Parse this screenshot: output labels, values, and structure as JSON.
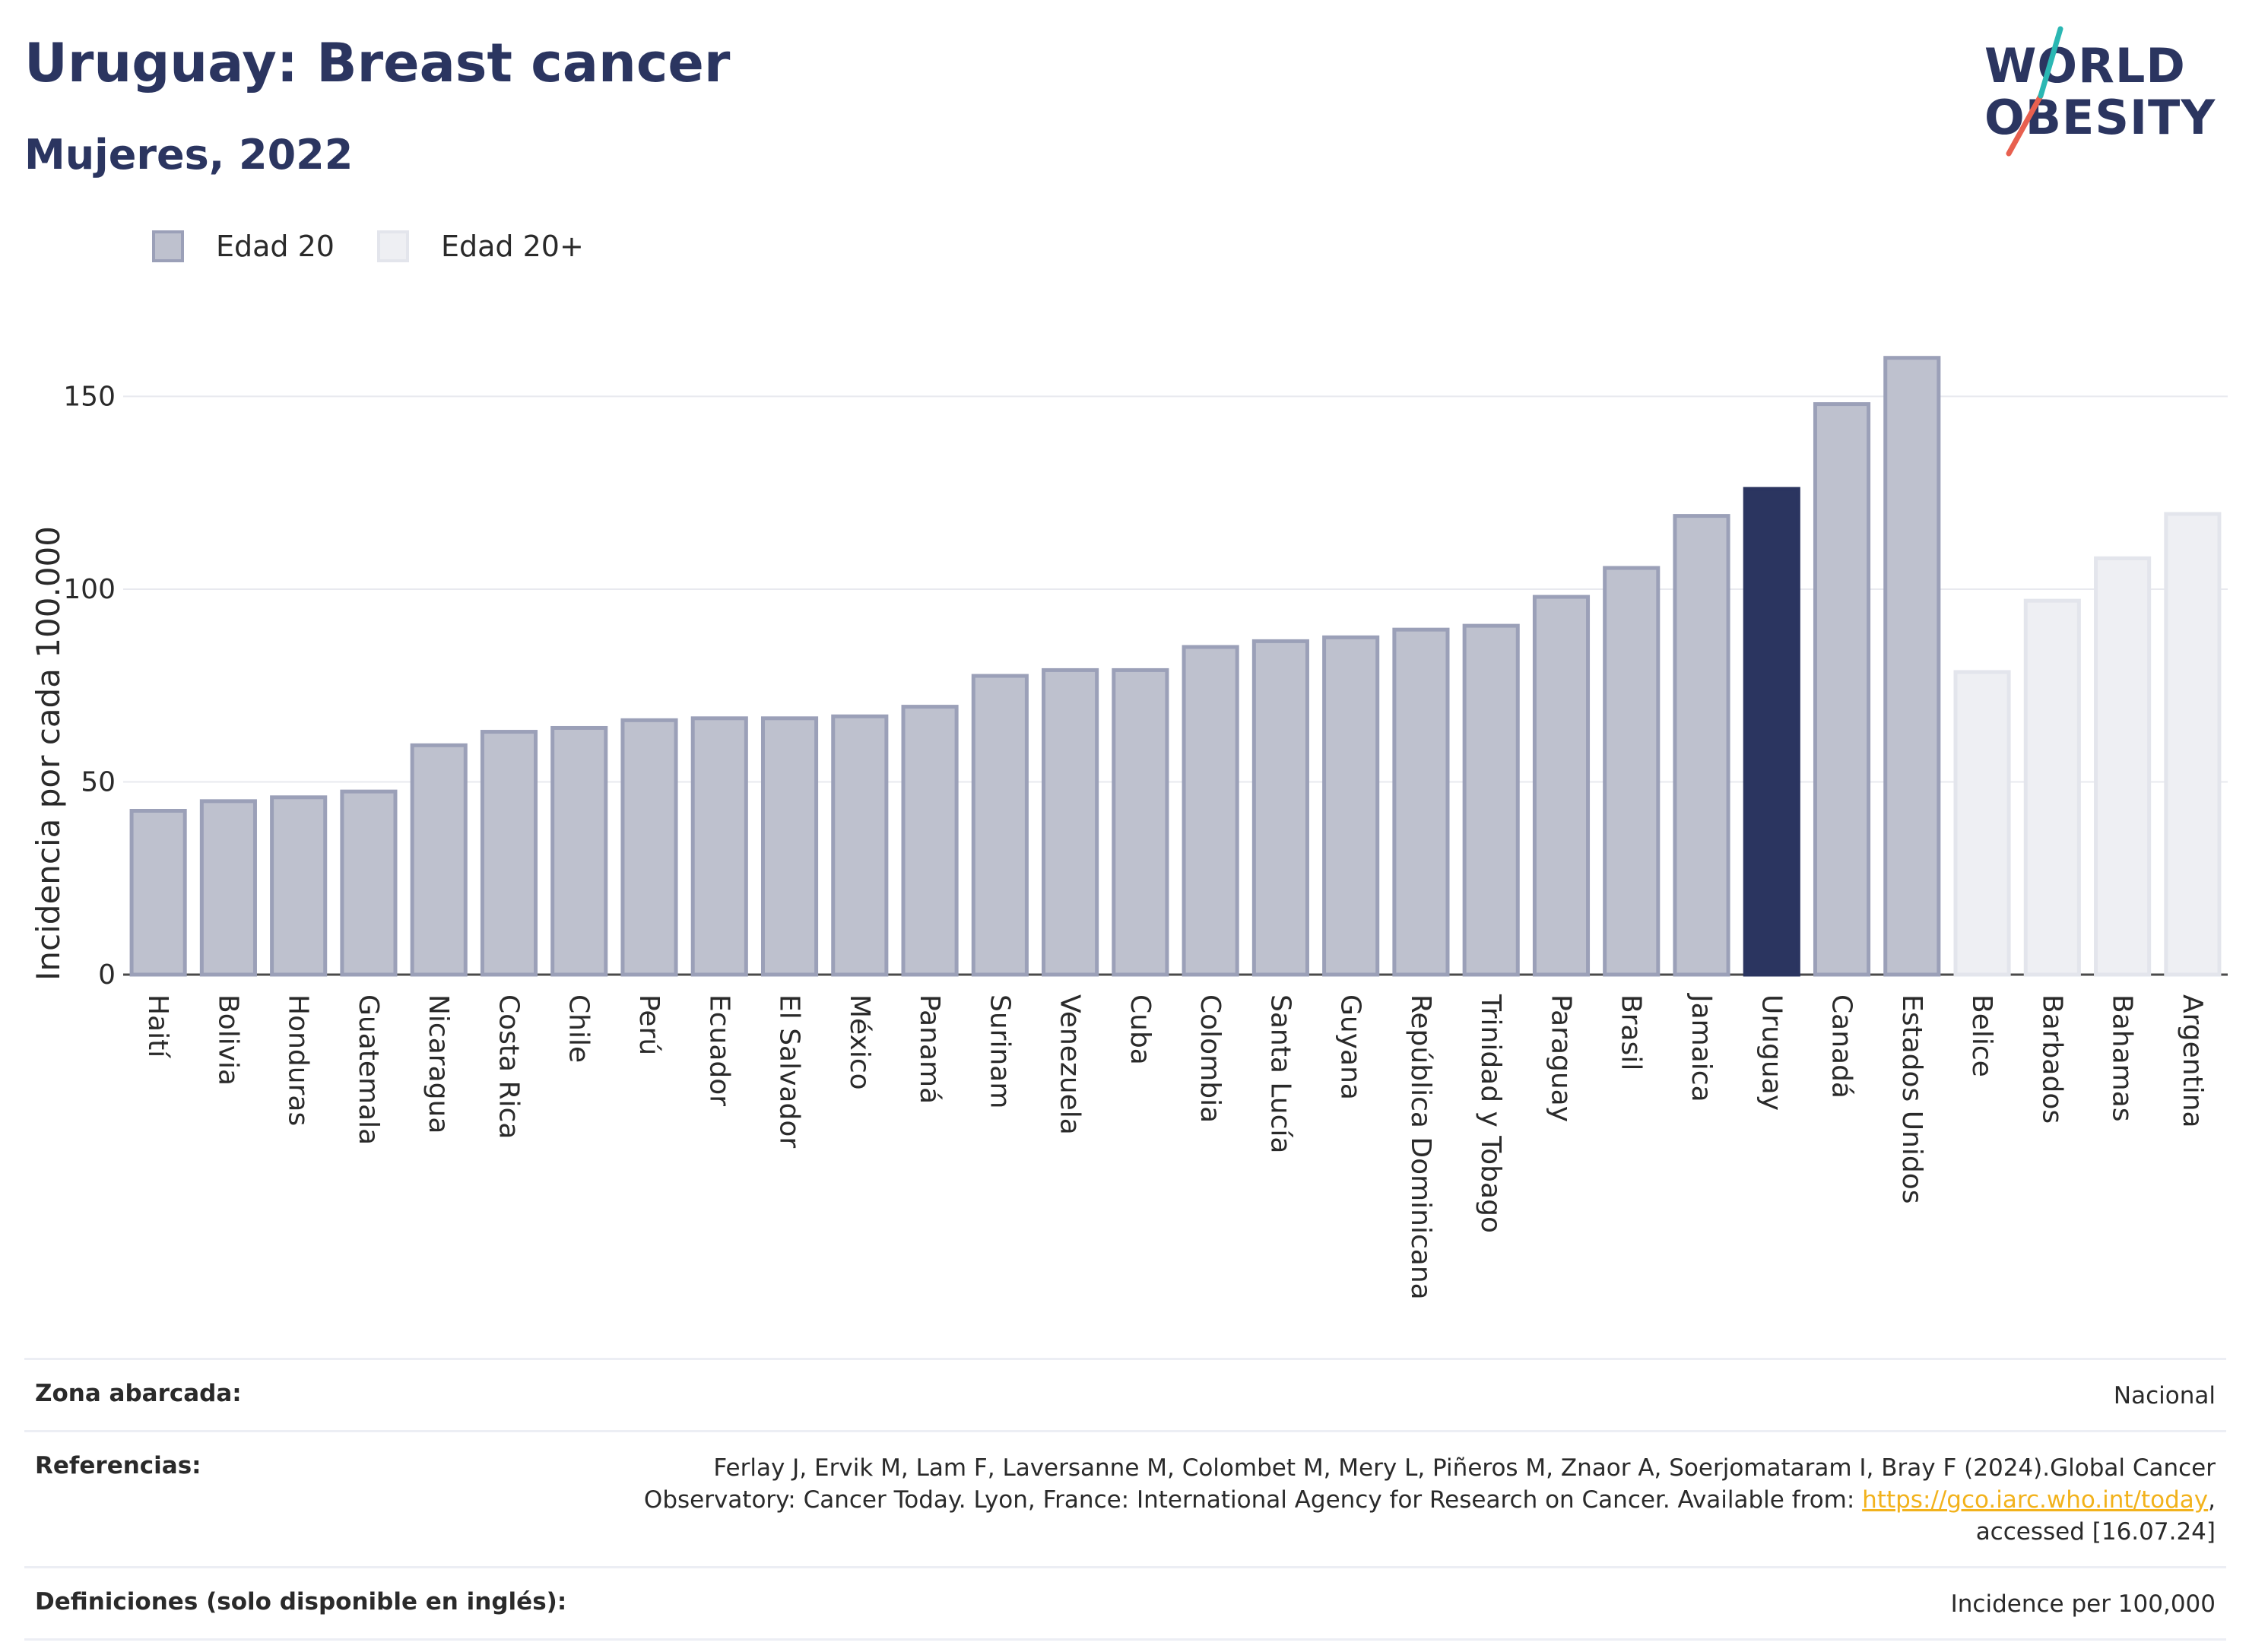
{
  "header": {
    "title": "Uruguay: Breast cancer",
    "subtitle": "Mujeres, 2022"
  },
  "logo": {
    "line1": "WORLD",
    "line2": "OBESITY"
  },
  "legend": [
    {
      "label": "Edad 20",
      "color": "#bec1ce"
    },
    {
      "label": "Edad 20+",
      "color": "#eeeff3"
    }
  ],
  "colors": {
    "bar_fill": "#bec1ce",
    "bar_stroke": "#9ba0b8",
    "highlight": "#2b3560",
    "light_fill": "#eeeff3",
    "light_stroke": "#e3e5ec"
  },
  "chart_data": {
    "type": "bar",
    "ylabel": "Incidencia por cada 100.000",
    "xlabel": "",
    "ylim": [
      0,
      170
    ],
    "yticks": [
      0,
      50,
      100,
      150
    ],
    "grid": true,
    "legend_position": "top-left",
    "highlight": "Uruguay",
    "categories": [
      "Haití",
      "Bolivia",
      "Honduras",
      "Guatemala",
      "Nicaragua",
      "Costa Rica",
      "Chile",
      "Perú",
      "Ecuador",
      "El Salvador",
      "México",
      "Panamá",
      "Surinam",
      "Venezuela",
      "Cuba",
      "Colombia",
      "Santa Lucía",
      "Guyana",
      "República Dominicana",
      "Trinidad y Tobago",
      "Paraguay",
      "Brasil",
      "Jamaica",
      "Uruguay",
      "Canadá",
      "Estados Unidos",
      "Belice",
      "Barbados",
      "Bahamas",
      "Argentina"
    ],
    "values": [
      42.5,
      45,
      46,
      47.5,
      59.5,
      63,
      64,
      66,
      66.5,
      66.5,
      67,
      69.5,
      77.5,
      79,
      79,
      85,
      86.5,
      87.5,
      89.5,
      90.5,
      98,
      105.5,
      119,
      126,
      148,
      160,
      78.5,
      97,
      108,
      119.5
    ],
    "series_group": [
      "Edad 20",
      "Edad 20",
      "Edad 20",
      "Edad 20",
      "Edad 20",
      "Edad 20",
      "Edad 20",
      "Edad 20",
      "Edad 20",
      "Edad 20",
      "Edad 20",
      "Edad 20",
      "Edad 20",
      "Edad 20",
      "Edad 20",
      "Edad 20",
      "Edad 20",
      "Edad 20",
      "Edad 20",
      "Edad 20",
      "Edad 20",
      "Edad 20",
      "Edad 20",
      "Edad 20",
      "Edad 20",
      "Edad 20",
      "Edad 20+",
      "Edad 20+",
      "Edad 20+",
      "Edad 20+"
    ]
  },
  "info": {
    "zona_label": "Zona abarcada:",
    "zona_value": "Nacional",
    "ref_label": "Referencias:",
    "ref_text1": "Ferlay J, Ervik M, Lam F, Laversanne M, Colombet M, Mery L, Piñeros M, Znaor A, Soerjomataram I, Bray F (2024).Global Cancer Observatory: Cancer Today. Lyon, France: International Agency for Research on Cancer. Available from: ",
    "ref_link": "https://gco.iarc.who.int/today",
    "ref_text2": ", accessed [16.07.24]",
    "def_label": "Definiciones (solo disponible en inglés):",
    "def_value": "Incidence per 100,000"
  }
}
